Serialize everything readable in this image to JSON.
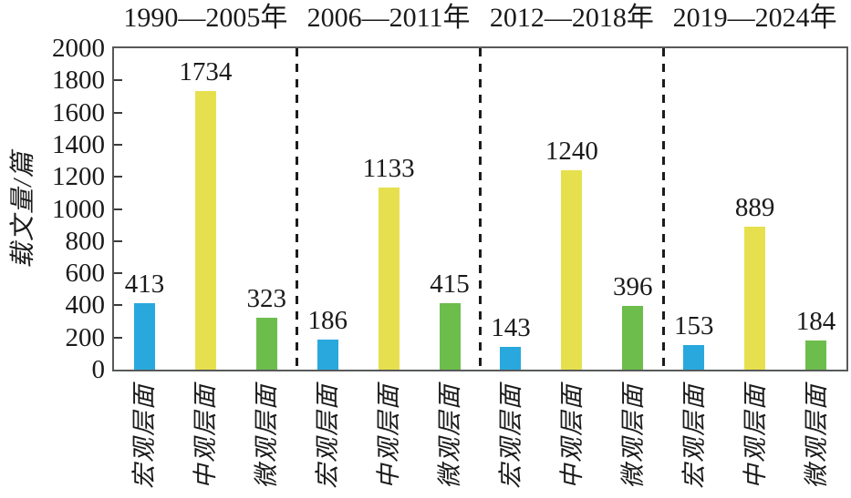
{
  "chart_data": {
    "type": "bar",
    "title": "",
    "ylabel": "载文量/篇",
    "xlabel": "",
    "ylim": [
      0,
      2000
    ],
    "ytick_interval": 200,
    "yticks": [
      0,
      200,
      400,
      600,
      800,
      1000,
      1200,
      1400,
      1600,
      1800,
      2000
    ],
    "grid": false,
    "legend": "none",
    "bar_categories": [
      "宏观层面",
      "中观层面",
      "微观层面"
    ],
    "series_colors": {
      "宏观层面": "#29A8DD",
      "中观层面": "#E7E04E",
      "微观层面": "#6CBD4C"
    },
    "groups": [
      {
        "period": "1990—2005年",
        "values": [
          413,
          1734,
          323
        ]
      },
      {
        "period": "2006—2011年",
        "values": [
          186,
          1133,
          415
        ]
      },
      {
        "period": "2012—2018年",
        "values": [
          143,
          1240,
          396
        ]
      },
      {
        "period": "2019—2024年",
        "values": [
          153,
          889,
          184
        ]
      }
    ],
    "group_separator_style": "dashed",
    "axis_color": "#58595B",
    "text_color": "#1a1a1a"
  }
}
